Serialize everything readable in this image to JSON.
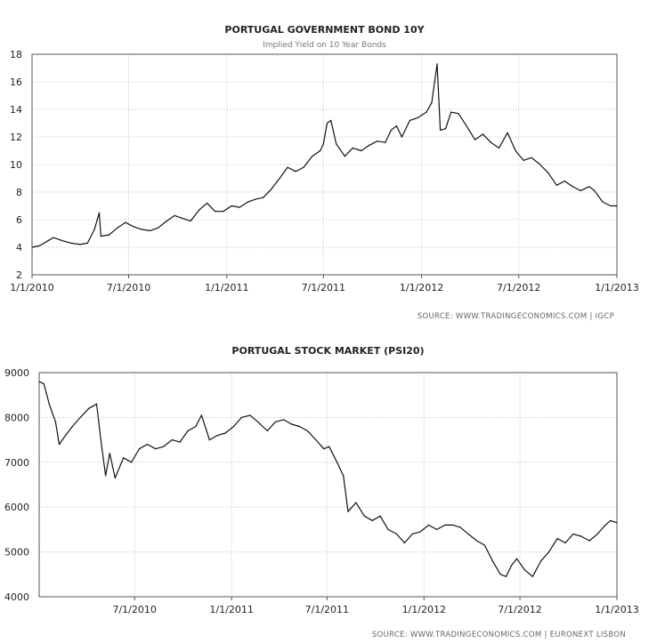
{
  "chart_data": [
    {
      "type": "line",
      "title": "PORTUGAL GOVERNMENT BOND 10Y",
      "subtitle": "Implied Yield on 10 Year Bonds",
      "source": "SOURCE:  WWW.TRADINGECONOMICS.COM  |  IGCP",
      "xlabel": "",
      "ylabel": "",
      "grid": true,
      "xlim": [
        "2010-01-01",
        "2013-01-01"
      ],
      "ylim": [
        2,
        18
      ],
      "yticks": [
        2,
        4,
        6,
        8,
        10,
        12,
        14,
        16,
        18
      ],
      "xticks": [
        {
          "date": "2010-01-01",
          "label": "1/1/2010"
        },
        {
          "date": "2010-07-01",
          "label": "7/1/2010"
        },
        {
          "date": "2011-01-01",
          "label": "1/1/2011"
        },
        {
          "date": "2011-07-01",
          "label": "7/1/2011"
        },
        {
          "date": "2012-01-01",
          "label": "1/1/2012"
        },
        {
          "date": "2012-07-01",
          "label": "7/1/2012"
        },
        {
          "date": "2013-01-01",
          "label": "1/1/2013"
        }
      ],
      "series": [
        {
          "points": [
            [
              "2010-01-01",
              4.0
            ],
            [
              "2010-01-15",
              4.1
            ],
            [
              "2010-02-01",
              4.5
            ],
            [
              "2010-02-10",
              4.7
            ],
            [
              "2010-02-25",
              4.5
            ],
            [
              "2010-03-15",
              4.3
            ],
            [
              "2010-04-01",
              4.2
            ],
            [
              "2010-04-15",
              4.3
            ],
            [
              "2010-04-28",
              5.3
            ],
            [
              "2010-05-07",
              6.5
            ],
            [
              "2010-05-10",
              4.8
            ],
            [
              "2010-05-25",
              4.9
            ],
            [
              "2010-06-10",
              5.4
            ],
            [
              "2010-06-25",
              5.8
            ],
            [
              "2010-07-10",
              5.5
            ],
            [
              "2010-07-25",
              5.3
            ],
            [
              "2010-08-10",
              5.2
            ],
            [
              "2010-08-25",
              5.4
            ],
            [
              "2010-09-10",
              5.9
            ],
            [
              "2010-09-25",
              6.3
            ],
            [
              "2010-10-10",
              6.1
            ],
            [
              "2010-10-25",
              5.9
            ],
            [
              "2010-11-10",
              6.7
            ],
            [
              "2010-11-25",
              7.2
            ],
            [
              "2010-12-10",
              6.6
            ],
            [
              "2010-12-25",
              6.6
            ],
            [
              "2011-01-10",
              7.0
            ],
            [
              "2011-01-25",
              6.9
            ],
            [
              "2011-02-10",
              7.3
            ],
            [
              "2011-02-25",
              7.5
            ],
            [
              "2011-03-10",
              7.6
            ],
            [
              "2011-03-25",
              8.2
            ],
            [
              "2011-04-10",
              9.0
            ],
            [
              "2011-04-25",
              9.8
            ],
            [
              "2011-05-10",
              9.5
            ],
            [
              "2011-05-25",
              9.8
            ],
            [
              "2011-06-10",
              10.6
            ],
            [
              "2011-06-25",
              11.0
            ],
            [
              "2011-07-01",
              11.5
            ],
            [
              "2011-07-08",
              13.0
            ],
            [
              "2011-07-15",
              13.2
            ],
            [
              "2011-07-25",
              11.5
            ],
            [
              "2011-08-10",
              10.6
            ],
            [
              "2011-08-25",
              11.2
            ],
            [
              "2011-09-10",
              11.0
            ],
            [
              "2011-09-25",
              11.4
            ],
            [
              "2011-10-10",
              11.7
            ],
            [
              "2011-10-25",
              11.6
            ],
            [
              "2011-11-05",
              12.5
            ],
            [
              "2011-11-15",
              12.8
            ],
            [
              "2011-11-25",
              12.0
            ],
            [
              "2011-12-10",
              13.2
            ],
            [
              "2011-12-25",
              13.4
            ],
            [
              "2012-01-10",
              13.8
            ],
            [
              "2012-01-20",
              14.5
            ],
            [
              "2012-01-30",
              17.3
            ],
            [
              "2012-02-05",
              12.5
            ],
            [
              "2012-02-15",
              12.6
            ],
            [
              "2012-02-25",
              13.8
            ],
            [
              "2012-03-10",
              13.7
            ],
            [
              "2012-03-25",
              12.8
            ],
            [
              "2012-04-10",
              11.8
            ],
            [
              "2012-04-25",
              12.2
            ],
            [
              "2012-05-10",
              11.6
            ],
            [
              "2012-05-25",
              11.2
            ],
            [
              "2012-06-10",
              12.3
            ],
            [
              "2012-06-25",
              11.0
            ],
            [
              "2012-07-10",
              10.3
            ],
            [
              "2012-07-25",
              10.5
            ],
            [
              "2012-08-10",
              10.0
            ],
            [
              "2012-08-25",
              9.4
            ],
            [
              "2012-09-10",
              8.5
            ],
            [
              "2012-09-25",
              8.8
            ],
            [
              "2012-10-10",
              8.4
            ],
            [
              "2012-10-25",
              8.1
            ],
            [
              "2012-11-10",
              8.4
            ],
            [
              "2012-11-20",
              8.1
            ],
            [
              "2012-12-05",
              7.3
            ],
            [
              "2012-12-20",
              7.0
            ],
            [
              "2013-01-01",
              7.0
            ]
          ]
        }
      ]
    },
    {
      "type": "line",
      "title": "PORTUGAL STOCK MARKET (PSI20)",
      "subtitle": "",
      "source": "SOURCE:  WWW.TRADINGECONOMICS.COM  |  EURONEXT LISBON",
      "xlabel": "",
      "ylabel": "",
      "grid": true,
      "xlim": [
        "2010-01-01",
        "2013-01-01"
      ],
      "ylim": [
        4000,
        9000
      ],
      "yticks": [
        4000,
        5000,
        6000,
        7000,
        8000,
        9000
      ],
      "xticks": [
        {
          "date": "2010-07-01",
          "label": "7/1/2010"
        },
        {
          "date": "2011-01-01",
          "label": "1/1/2011"
        },
        {
          "date": "2011-07-01",
          "label": "7/1/2011"
        },
        {
          "date": "2012-01-01",
          "label": "1/1/2012"
        },
        {
          "date": "2012-07-01",
          "label": "7/1/2012"
        },
        {
          "date": "2013-01-01",
          "label": "1/1/2013"
        }
      ],
      "series": [
        {
          "points": [
            [
              "2010-01-01",
              8800
            ],
            [
              "2010-01-10",
              8750
            ],
            [
              "2010-01-20",
              8300
            ],
            [
              "2010-02-01",
              7900
            ],
            [
              "2010-02-08",
              7400
            ],
            [
              "2010-02-20",
              7600
            ],
            [
              "2010-03-05",
              7800
            ],
            [
              "2010-03-20",
              8000
            ],
            [
              "2010-04-05",
              8200
            ],
            [
              "2010-04-20",
              8300
            ],
            [
              "2010-04-28",
              7500
            ],
            [
              "2010-05-07",
              6700
            ],
            [
              "2010-05-15",
              7200
            ],
            [
              "2010-05-25",
              6650
            ],
            [
              "2010-06-10",
              7100
            ],
            [
              "2010-06-25",
              7000
            ],
            [
              "2010-07-10",
              7300
            ],
            [
              "2010-07-25",
              7400
            ],
            [
              "2010-08-10",
              7300
            ],
            [
              "2010-08-25",
              7350
            ],
            [
              "2010-09-10",
              7500
            ],
            [
              "2010-09-25",
              7450
            ],
            [
              "2010-10-10",
              7700
            ],
            [
              "2010-10-25",
              7800
            ],
            [
              "2010-11-05",
              8050
            ],
            [
              "2010-11-20",
              7500
            ],
            [
              "2010-12-05",
              7600
            ],
            [
              "2010-12-20",
              7650
            ],
            [
              "2011-01-05",
              7800
            ],
            [
              "2011-01-20",
              8000
            ],
            [
              "2011-02-05",
              8050
            ],
            [
              "2011-02-20",
              7900
            ],
            [
              "2011-03-10",
              7700
            ],
            [
              "2011-03-25",
              7900
            ],
            [
              "2011-04-10",
              7950
            ],
            [
              "2011-04-25",
              7850
            ],
            [
              "2011-05-10",
              7800
            ],
            [
              "2011-05-25",
              7700
            ],
            [
              "2011-06-10",
              7500
            ],
            [
              "2011-06-25",
              7300
            ],
            [
              "2011-07-05",
              7350
            ],
            [
              "2011-07-20",
              7000
            ],
            [
              "2011-08-01",
              6700
            ],
            [
              "2011-08-10",
              5900
            ],
            [
              "2011-08-25",
              6100
            ],
            [
              "2011-09-10",
              5800
            ],
            [
              "2011-09-25",
              5700
            ],
            [
              "2011-10-10",
              5800
            ],
            [
              "2011-10-25",
              5500
            ],
            [
              "2011-11-10",
              5400
            ],
            [
              "2011-11-25",
              5200
            ],
            [
              "2011-12-10",
              5400
            ],
            [
              "2011-12-25",
              5450
            ],
            [
              "2012-01-10",
              5600
            ],
            [
              "2012-01-25",
              5500
            ],
            [
              "2012-02-10",
              5600
            ],
            [
              "2012-02-25",
              5600
            ],
            [
              "2012-03-10",
              5550
            ],
            [
              "2012-03-25",
              5400
            ],
            [
              "2012-04-10",
              5250
            ],
            [
              "2012-04-25",
              5150
            ],
            [
              "2012-05-10",
              4800
            ],
            [
              "2012-05-25",
              4500
            ],
            [
              "2012-06-05",
              4450
            ],
            [
              "2012-06-15",
              4700
            ],
            [
              "2012-06-25",
              4850
            ],
            [
              "2012-07-10",
              4600
            ],
            [
              "2012-07-25",
              4450
            ],
            [
              "2012-08-10",
              4800
            ],
            [
              "2012-08-25",
              5000
            ],
            [
              "2012-09-10",
              5300
            ],
            [
              "2012-09-25",
              5200
            ],
            [
              "2012-10-10",
              5400
            ],
            [
              "2012-10-25",
              5350
            ],
            [
              "2012-11-10",
              5250
            ],
            [
              "2012-11-25",
              5400
            ],
            [
              "2012-12-10",
              5600
            ],
            [
              "2012-12-20",
              5700
            ],
            [
              "2013-01-01",
              5650
            ]
          ]
        }
      ]
    }
  ]
}
